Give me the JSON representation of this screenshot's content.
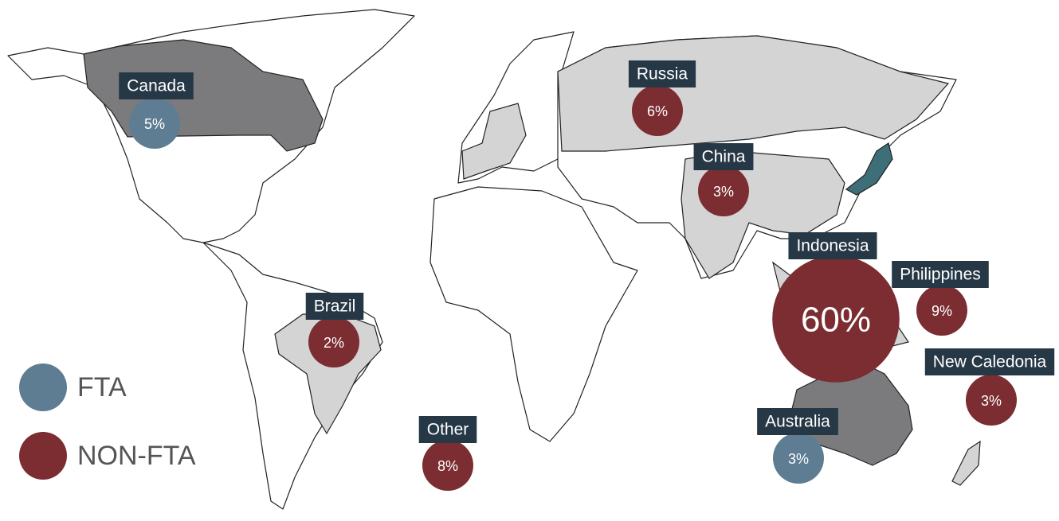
{
  "legend": [
    {
      "label": "FTA",
      "color": "#5e7d92"
    },
    {
      "label": "NON-FTA",
      "color": "#7b2d31"
    }
  ],
  "label_color": "#263846",
  "markers": [
    {
      "name": "Canada",
      "value": 5,
      "value_label": "5%",
      "color": "#5e7d92"
    },
    {
      "name": "Russia",
      "value": 6,
      "value_label": "6%",
      "color": "#7b2d31"
    },
    {
      "name": "China",
      "value": 3,
      "value_label": "3%",
      "color": "#7b2d31"
    },
    {
      "name": "Indonesia",
      "value": 60,
      "value_label": "60%",
      "color": "#7b2d31"
    },
    {
      "name": "Philippines",
      "value": 9,
      "value_label": "9%",
      "color": "#7b2d31"
    },
    {
      "name": "New Caledonia",
      "value": 3,
      "value_label": "3%",
      "color": "#7b2d31"
    },
    {
      "name": "Australia",
      "value": 3,
      "value_label": "3%",
      "color": "#5e7d92"
    },
    {
      "name": "Brazil",
      "value": 2,
      "value_label": "2%",
      "color": "#7b2d31"
    },
    {
      "name": "Other",
      "value": 8,
      "value_label": "8%",
      "color": "#7b2d31"
    }
  ]
}
